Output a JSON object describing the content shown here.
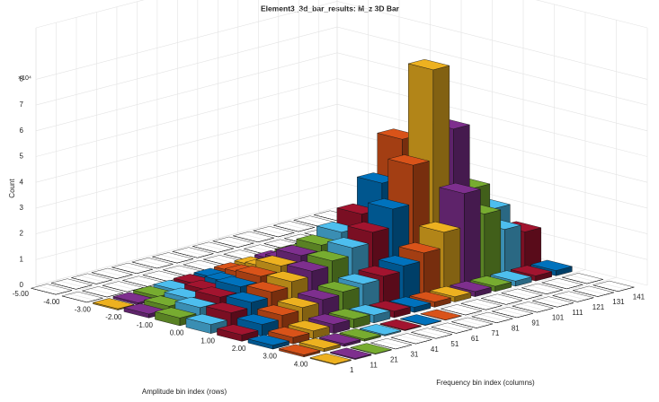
{
  "chart_data": {
    "type": "bar3d",
    "title": "Element3_3d_bar_results: M_z 3D Bar",
    "xlabel": "Amplitude bin index (rows)",
    "ylabel": "Frequency bin index (columns)",
    "zlabel": "Count",
    "z_exponent": "×10⁴",
    "rows": [
      -4.5,
      -3.5,
      -2.5,
      -1.5,
      -0.5,
      0.5,
      1.5,
      2.5,
      3.5,
      4.5
    ],
    "columns": [
      1,
      11,
      21,
      31,
      41,
      51,
      61,
      71,
      81,
      91,
      101,
      111,
      121,
      131,
      141
    ],
    "values": [
      [
        0,
        0,
        0,
        0,
        0,
        0,
        0,
        0,
        0,
        0,
        0,
        0,
        0,
        0,
        0
      ],
      [
        0,
        0,
        0,
        0,
        0,
        0,
        0,
        0,
        0,
        0,
        0,
        0,
        0,
        0,
        0
      ],
      [
        500,
        800,
        1200,
        1500,
        1800,
        2000,
        2200,
        2500,
        2800,
        3000,
        3200,
        3500,
        3000,
        2500,
        2000
      ],
      [
        1500,
        2500,
        3500,
        4500,
        5500,
        6500,
        7000,
        8000,
        9000,
        10000,
        12000,
        15000,
        12000,
        9000,
        7000
      ],
      [
        3000,
        5000,
        7000,
        9000,
        11000,
        13000,
        15000,
        17000,
        20000,
        25000,
        35000,
        50000,
        40000,
        25000,
        18000
      ],
      [
        3500,
        6000,
        8000,
        10000,
        12000,
        14000,
        16000,
        19000,
        23000,
        30000,
        45000,
        80000,
        55000,
        30000,
        20000
      ],
      [
        2500,
        4500,
        6000,
        7000,
        8000,
        9000,
        10000,
        11000,
        13000,
        16000,
        22000,
        35000,
        25000,
        17000,
        14000
      ],
      [
        1500,
        2500,
        3000,
        3500,
        3500,
        3000,
        2500,
        2000,
        2000,
        2000,
        2000,
        2000,
        2000,
        2000,
        2000
      ],
      [
        800,
        1200,
        1000,
        800,
        500,
        300,
        200,
        100,
        0,
        0,
        0,
        0,
        0,
        0,
        0
      ],
      [
        300,
        400,
        200,
        0,
        0,
        0,
        0,
        0,
        0,
        0,
        0,
        0,
        0,
        0,
        0
      ]
    ],
    "colors": [
      "#0072BD",
      "#D95319",
      "#EDB120",
      "#7E2F8E",
      "#77AC30",
      "#4DBEEE",
      "#A2142F"
    ],
    "xlim": [
      -5,
      5
    ],
    "xticks": [
      {
        "value": -5,
        "label": "-5.00"
      },
      {
        "value": -4,
        "label": "-4.00"
      },
      {
        "value": -3,
        "label": "-3.00"
      },
      {
        "value": -2,
        "label": "-2.00"
      },
      {
        "value": -1,
        "label": "-1.00"
      },
      {
        "value": 0,
        "label": "0.00"
      },
      {
        "value": 1,
        "label": "1.00"
      },
      {
        "value": 2,
        "label": "2.00"
      },
      {
        "value": 3,
        "label": "3.00"
      },
      {
        "value": 4,
        "label": "4.00"
      }
    ],
    "ylim": [
      1,
      150
    ],
    "yticks": [
      1,
      11,
      21,
      31,
      41,
      51,
      61,
      71,
      81,
      91,
      101,
      111,
      121,
      131,
      141
    ],
    "zlim": [
      0,
      100000
    ],
    "zticks": [
      {
        "value": 0,
        "label": "0"
      },
      {
        "value": 10000,
        "label": "1"
      },
      {
        "value": 20000,
        "label": "2"
      },
      {
        "value": 30000,
        "label": "3"
      },
      {
        "value": 40000,
        "label": "4"
      },
      {
        "value": 50000,
        "label": "5"
      },
      {
        "value": 60000,
        "label": "6"
      },
      {
        "value": 70000,
        "label": "7"
      },
      {
        "value": 80000,
        "label": "8"
      }
    ],
    "grid": true
  }
}
